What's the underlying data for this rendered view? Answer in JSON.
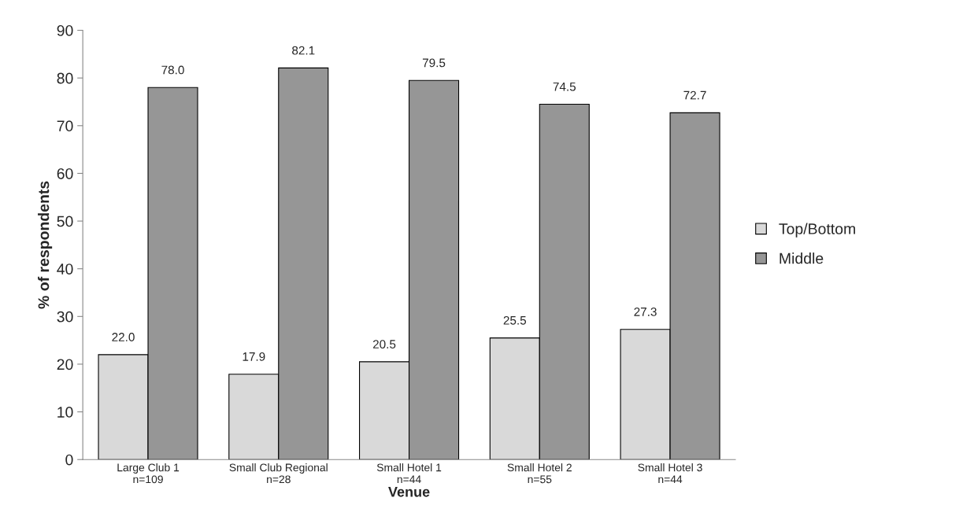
{
  "chart_data": {
    "type": "bar",
    "xlabel": "Venue",
    "ylabel": "% of respondents",
    "categories": [
      "Large Club 1\nn=109",
      "Small Club Regional\nn=28",
      "Small Hotel 1\nn=44",
      "Small Hotel 2\nn=55",
      "Small Hotel 3\nn=44"
    ],
    "series": [
      {
        "name": "Top/Bottom",
        "color": "#d9d9d9",
        "values": [
          22.0,
          17.9,
          20.5,
          25.5,
          27.3
        ],
        "value_labels": [
          "22.0",
          "17.9",
          "20.5",
          "25.5",
          "27.3"
        ]
      },
      {
        "name": "Middle",
        "color": "#969696",
        "values": [
          78.0,
          82.1,
          79.5,
          74.5,
          72.7
        ],
        "value_labels": [
          "78.0",
          "82.1",
          "79.5",
          "74.5",
          "72.7"
        ]
      }
    ],
    "ylim": [
      0,
      90
    ],
    "yticks": [
      0,
      10,
      20,
      30,
      40,
      50,
      60,
      70,
      80,
      90
    ],
    "legend": "right",
    "grid": false
  }
}
